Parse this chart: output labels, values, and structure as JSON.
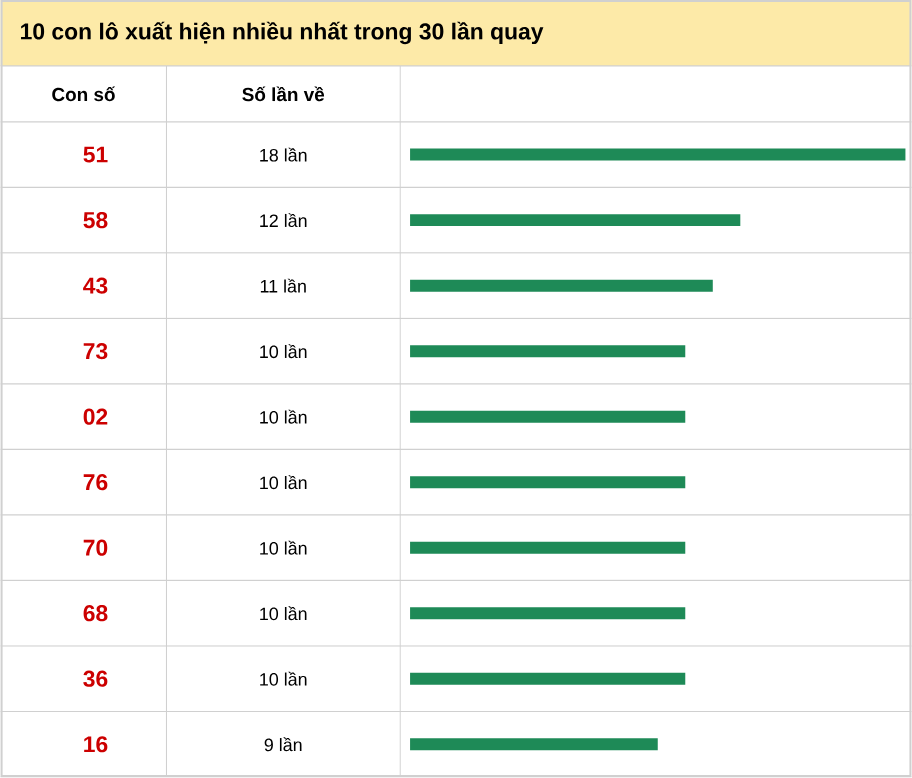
{
  "chart_data": {
    "type": "bar",
    "orientation": "horizontal",
    "title": "10 con lô xuất hiện nhiều nhất trong 30 lần quay",
    "annotations": [
      "Con số",
      "Số lần về"
    ],
    "categories": [
      "51",
      "58",
      "43",
      "73",
      "02",
      "76",
      "70",
      "68",
      "36",
      "16"
    ],
    "values": [
      18,
      12,
      11,
      10,
      10,
      10,
      10,
      10,
      10,
      9
    ],
    "value_labels": [
      "18 lần",
      "12 lần",
      "11 lần",
      "10 lần",
      "10 lần",
      "10 lần",
      "10 lần",
      "10 lần",
      "10 lần",
      "9 lần"
    ],
    "color": "#1e8a57",
    "xlim": [
      0,
      18
    ]
  }
}
